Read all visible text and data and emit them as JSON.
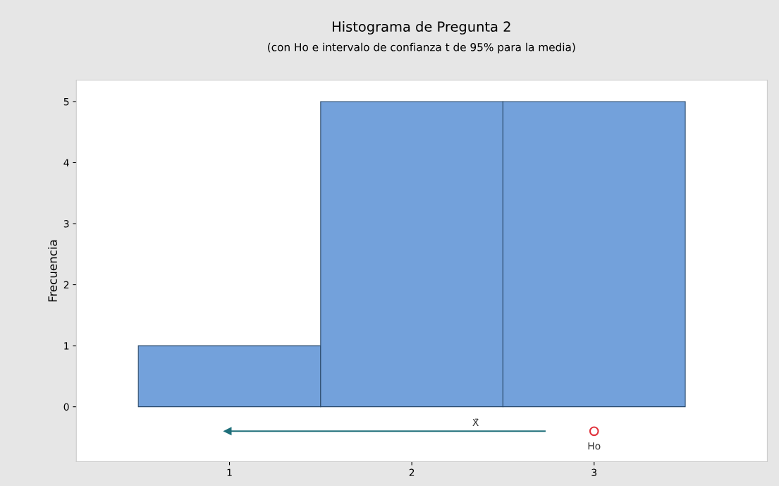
{
  "chart_data": {
    "type": "histogram",
    "title": "Histograma de Pregunta 2",
    "subtitle": "(con Ho e intervalo de confianza t de 95% para la media)",
    "ylabel": "Frecuencia",
    "bins": [
      0.5,
      1.5,
      2.5,
      3.5
    ],
    "values": [
      1,
      5,
      5
    ],
    "color": "#73a1db",
    "series": [
      {
        "type": "line",
        "x": [
          0.99,
          2.35,
          2.73
        ],
        "values": [
          -0.4,
          -0.4,
          -0.4
        ],
        "color": "#1f6f7a"
      },
      {
        "type": "scatter",
        "x": [
          3.0
        ],
        "values": [
          -0.4
        ],
        "color": "#e0303a",
        "marker": "circle"
      }
    ],
    "annotations": [
      {
        "text": "X̄",
        "x": 2.35,
        "y": -0.4
      },
      {
        "text": "Ho",
        "x": 3.0,
        "y": -0.4
      }
    ],
    "xlim": [
      0.16,
      3.95
    ],
    "ylim": [
      -0.9,
      5.35
    ],
    "xticks": [
      1,
      2,
      3
    ],
    "yticks": [
      0,
      1,
      2,
      3,
      4,
      5
    ],
    "grid": false,
    "legend": false
  }
}
